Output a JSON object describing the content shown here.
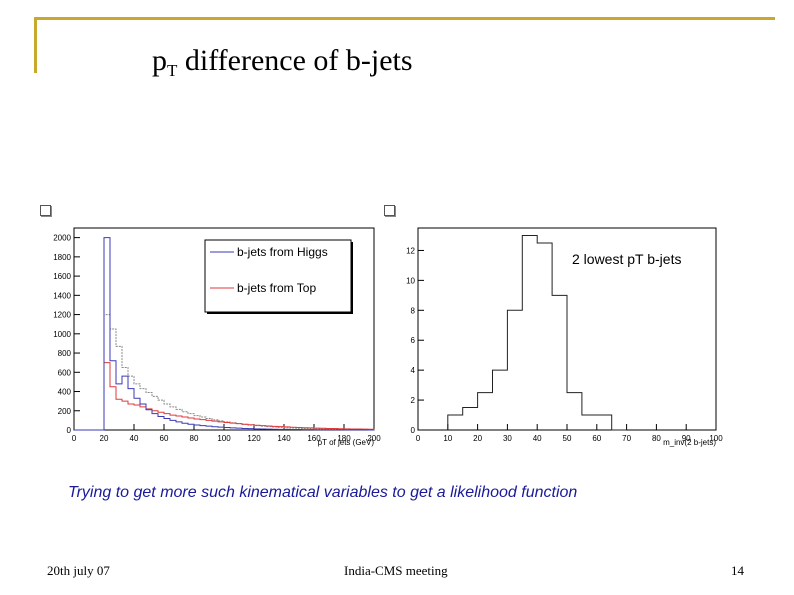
{
  "slide": {
    "title_main": "p",
    "title_sub": "T",
    "title_rest": " difference of b-jets",
    "caption": "Trying to get more such kinematical variables to get a likelihood function",
    "footer_left": "20th july 07",
    "footer_center": "India-CMS meeting",
    "footer_right": "14",
    "accent_color": "#c8a82d"
  },
  "chart_data": [
    {
      "type": "line",
      "style": "step-histogram",
      "xlabel": "pT of jets (GeV)",
      "ylabel": "",
      "xlim": [
        0,
        200
      ],
      "ylim": [
        0,
        2100
      ],
      "x_ticks": [
        0,
        20,
        40,
        60,
        80,
        100,
        120,
        140,
        160,
        180,
        200
      ],
      "y_ticks": [
        0,
        200,
        400,
        600,
        800,
        1000,
        1200,
        1400,
        1600,
        1800,
        2000
      ],
      "bin_edges": [
        0,
        4,
        8,
        12,
        16,
        20,
        24,
        28,
        32,
        36,
        40,
        44,
        48,
        52,
        56,
        60,
        64,
        68,
        72,
        76,
        80,
        84,
        88,
        92,
        96,
        100,
        104,
        108,
        112,
        116,
        120,
        124,
        128,
        132,
        136,
        140,
        144,
        148,
        152,
        156,
        160,
        164,
        168,
        172,
        176,
        180,
        184,
        188,
        192,
        196,
        200
      ],
      "series": [
        {
          "name": "b-jets from Higgs",
          "color": "#3a3ab8",
          "values": [
            0,
            0,
            0,
            0,
            0,
            2000,
            720,
            480,
            560,
            430,
            330,
            270,
            210,
            170,
            140,
            120,
            100,
            85,
            70,
            60,
            52,
            45,
            40,
            34,
            30,
            26,
            22,
            19,
            16,
            14,
            12,
            10,
            9,
            8,
            7,
            6,
            5,
            5,
            4,
            4,
            3,
            3,
            2,
            2,
            2,
            1,
            1,
            1,
            1,
            0
          ]
        },
        {
          "name": "b-jets from Top",
          "color": "#e03a3a",
          "values": [
            0,
            0,
            0,
            0,
            0,
            700,
            450,
            320,
            300,
            270,
            260,
            240,
            220,
            200,
            185,
            170,
            155,
            145,
            135,
            125,
            115,
            108,
            100,
            92,
            85,
            78,
            72,
            66,
            60,
            55,
            50,
            46,
            42,
            38,
            35,
            32,
            29,
            26,
            24,
            22,
            20,
            18,
            16,
            15,
            13,
            12,
            11,
            10,
            9,
            8
          ]
        },
        {
          "name": "grey",
          "color": "#888888",
          "values": [
            0,
            0,
            0,
            0,
            0,
            1200,
            1050,
            870,
            650,
            560,
            480,
            430,
            390,
            350,
            310,
            270,
            240,
            215,
            190,
            170,
            150,
            135,
            120,
            105,
            95,
            85,
            75,
            66,
            58,
            51,
            45,
            40,
            35,
            31,
            27,
            24,
            21,
            18,
            16,
            14,
            12,
            11,
            10,
            9,
            8,
            7,
            6,
            5,
            5,
            4
          ]
        }
      ],
      "legend": [
        "b-jets from Higgs",
        "b-jets from Top"
      ],
      "legend_placement": "top-right"
    },
    {
      "type": "line",
      "style": "step-histogram",
      "title": "2 lowest pT b-jets",
      "xlabel": "m_inv(2 b-jets)",
      "ylabel": "",
      "xlim": [
        0,
        100
      ],
      "ylim": [
        0,
        13.5
      ],
      "x_ticks": [
        0,
        10,
        20,
        30,
        40,
        50,
        60,
        70,
        80,
        90,
        100
      ],
      "y_ticks": [
        0,
        2,
        4,
        6,
        8,
        10,
        12
      ],
      "bin_edges": [
        10,
        15,
        20,
        25,
        30,
        35,
        40,
        45,
        50,
        55,
        60,
        65,
        70
      ],
      "series": [
        {
          "name": "mass",
          "color": "#222222",
          "values": [
            1,
            1.5,
            2.5,
            4,
            8,
            13,
            12.5,
            9,
            2.5,
            1,
            1,
            0
          ]
        }
      ]
    }
  ]
}
